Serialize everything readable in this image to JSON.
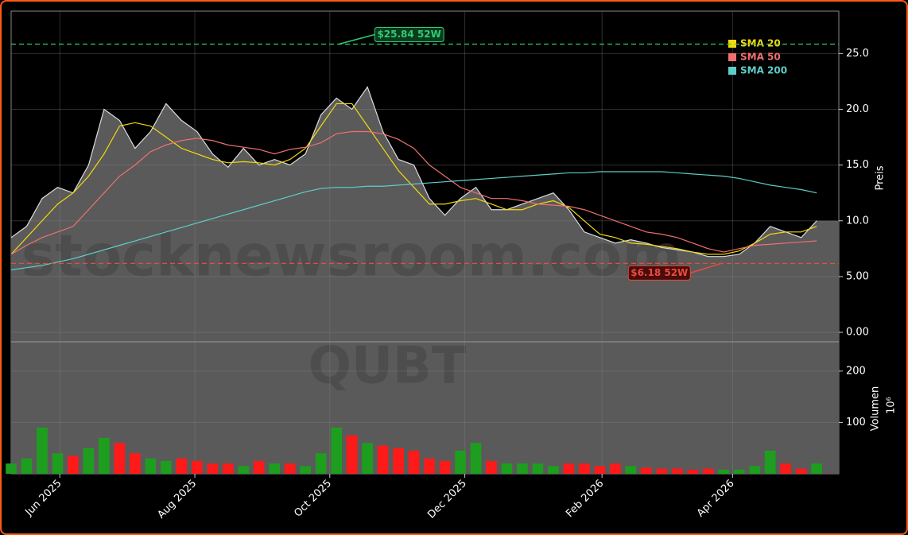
{
  "chart_data": {
    "type": "stock",
    "symbol": "QUBT",
    "watermark": "stocknewsroom.com",
    "ylabel": "Preis",
    "volume_label": "Volumen",
    "volume_unit": "10⁶",
    "x": [
      0,
      7,
      14,
      21,
      28,
      35,
      42,
      49,
      56,
      63,
      70,
      77,
      84,
      91,
      98,
      105,
      112,
      119,
      126,
      133,
      140,
      147,
      154,
      161,
      168,
      175,
      182,
      189,
      196,
      203,
      210,
      217,
      224,
      231,
      238,
      245,
      252,
      259,
      266,
      273,
      280,
      287,
      294,
      301,
      308,
      315,
      322,
      329,
      336,
      343,
      350,
      357,
      364
    ],
    "xlim": [
      0,
      374
    ],
    "xticks": [
      {
        "value": 22,
        "label": "Jun 2025"
      },
      {
        "value": 83,
        "label": "Aug 2025"
      },
      {
        "value": 144,
        "label": "Oct 2025"
      },
      {
        "value": 205,
        "label": "Dec 2025"
      },
      {
        "value": 267,
        "label": "Feb 2026"
      },
      {
        "value": 326,
        "label": "Apr 2026"
      }
    ],
    "ylim": [
      -0.85,
      28.8
    ],
    "yticks": [
      {
        "value": 0,
        "label": "0.00"
      },
      {
        "value": 5,
        "label": "5.00"
      },
      {
        "value": 10,
        "label": "10.0"
      },
      {
        "value": 15,
        "label": "15.0"
      },
      {
        "value": 20,
        "label": "20.0"
      },
      {
        "value": 25,
        "label": "25.0"
      }
    ],
    "y2lim": [
      0,
      257
    ],
    "y2ticks": [
      100,
      200
    ],
    "grid": true,
    "price": {
      "color": "#dcdcdc",
      "area_color": "#5a5a5a",
      "values": [
        8.5,
        9.5,
        12.0,
        13.0,
        12.5,
        15.0,
        20.0,
        19.0,
        16.5,
        18.0,
        20.5,
        19.0,
        18.0,
        16.0,
        14.8,
        16.5,
        15.0,
        15.5,
        15.0,
        16.0,
        19.5,
        21.0,
        20.0,
        22.0,
        18.0,
        15.5,
        15.0,
        12.0,
        10.5,
        12.0,
        13.0,
        11.0,
        11.0,
        11.5,
        12.0,
        12.5,
        11.0,
        9.0,
        8.5,
        8.0,
        8.3,
        8.0,
        7.6,
        7.4,
        7.2,
        6.8,
        6.8,
        7.0,
        8.0,
        9.5,
        9.0,
        8.5,
        10.0
      ]
    },
    "series": [
      {
        "name": "SMA 20",
        "color": "#f5d90a",
        "values": [
          7.0,
          8.5,
          10.0,
          11.5,
          12.5,
          14.0,
          16.0,
          18.5,
          18.8,
          18.5,
          17.5,
          16.5,
          16.0,
          15.5,
          15.2,
          15.3,
          15.2,
          15.0,
          15.5,
          16.5,
          18.5,
          20.5,
          20.5,
          18.5,
          16.5,
          14.5,
          13.0,
          11.5,
          11.5,
          11.8,
          12.0,
          11.5,
          11.0,
          11.0,
          11.5,
          11.8,
          11.2,
          10.0,
          8.8,
          8.5,
          8.0,
          7.9,
          7.7,
          7.5,
          7.2,
          7.0,
          7.0,
          7.3,
          8.0,
          8.8,
          9.0,
          9.0,
          9.5
        ]
      },
      {
        "name": "SMA 50",
        "color": "#f07070",
        "values": [
          7.0,
          7.8,
          8.5,
          9.0,
          9.5,
          11.0,
          12.5,
          14.0,
          15.0,
          16.2,
          16.8,
          17.2,
          17.4,
          17.2,
          16.8,
          16.6,
          16.4,
          16.0,
          16.4,
          16.6,
          17.0,
          17.8,
          18.0,
          18.0,
          17.8,
          17.3,
          16.5,
          15.0,
          14.0,
          13.0,
          12.5,
          12.0,
          12.0,
          11.8,
          11.5,
          11.4,
          11.3,
          11.0,
          10.5,
          10.0,
          9.5,
          9.0,
          8.8,
          8.5,
          8.0,
          7.5,
          7.2,
          7.5,
          7.8,
          7.9,
          8.0,
          8.1,
          8.2
        ]
      },
      {
        "name": "SMA 200",
        "color": "#5ecdc8",
        "values": [
          5.6,
          5.8,
          6.0,
          6.3,
          6.6,
          7.0,
          7.4,
          7.8,
          8.2,
          8.6,
          9.0,
          9.4,
          9.8,
          10.2,
          10.6,
          11.0,
          11.4,
          11.8,
          12.2,
          12.6,
          12.9,
          13.0,
          13.0,
          13.1,
          13.1,
          13.2,
          13.3,
          13.4,
          13.5,
          13.6,
          13.7,
          13.8,
          13.9,
          14.0,
          14.1,
          14.2,
          14.3,
          14.3,
          14.4,
          14.4,
          14.4,
          14.4,
          14.4,
          14.3,
          14.2,
          14.1,
          14.0,
          13.8,
          13.5,
          13.2,
          13.0,
          12.8,
          12.5
        ]
      }
    ],
    "volume": {
      "up_color": "#1e9e1e",
      "down_color": "#ff1a1a",
      "values": [
        20,
        30,
        90,
        40,
        35,
        50,
        70,
        60,
        40,
        30,
        25,
        30,
        25,
        20,
        20,
        15,
        25,
        20,
        20,
        15,
        40,
        90,
        75,
        60,
        55,
        50,
        45,
        30,
        25,
        45,
        60,
        25,
        20,
        20,
        20,
        15,
        20,
        20,
        15,
        20,
        15,
        12,
        10,
        10,
        8,
        10,
        8,
        8,
        15,
        45,
        20,
        10,
        20
      ]
    },
    "high_52w": {
      "value": 25.84,
      "label": "$25.84 52W",
      "color": "#2ecc71",
      "at": 147
    },
    "low_52w": {
      "value": 6.18,
      "label": "$6.18 52W",
      "color": "#e74c3c",
      "at": 322
    }
  }
}
